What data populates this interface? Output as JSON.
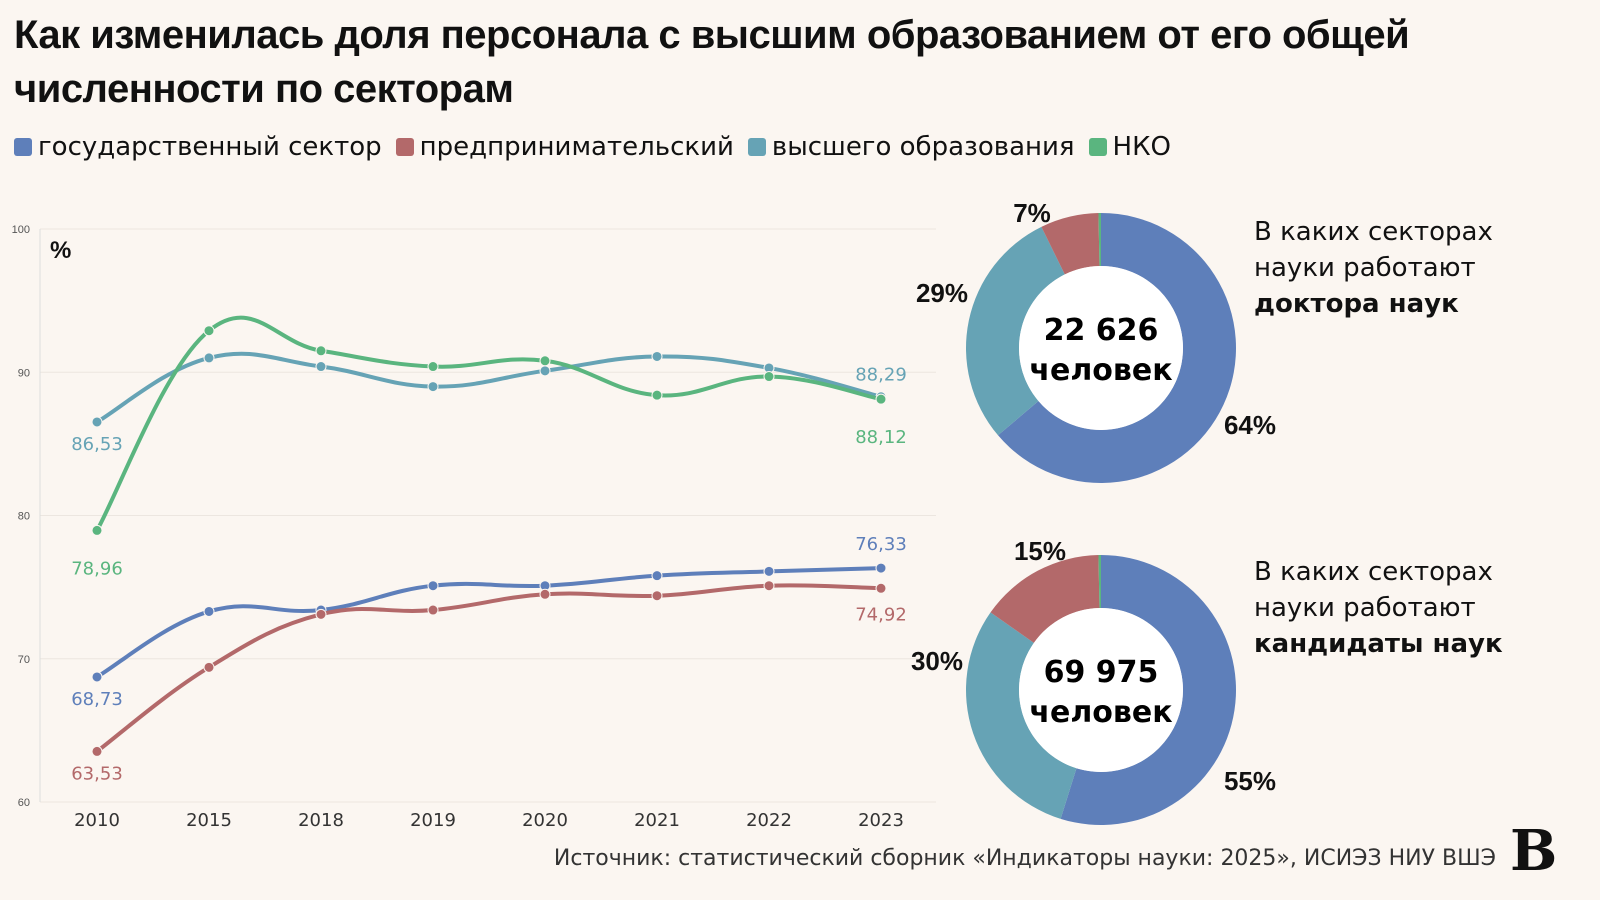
{
  "title": "Как изменилась доля персонала с высшим образованием от его общей численности по секторам",
  "legend": [
    {
      "label": "государственный сектор",
      "color": "#5e7fba"
    },
    {
      "label": "предпринимательский",
      "color": "#b3696a"
    },
    {
      "label": "высшего образования",
      "color": "#66a3b5"
    },
    {
      "label": "НКО",
      "color": "#5ab57f"
    }
  ],
  "chart_data": [
    {
      "type": "line",
      "ylabel": "%",
      "ylim": [
        60,
        100
      ],
      "yticks": [
        60,
        70,
        80,
        90,
        100
      ],
      "grid": true,
      "categories": [
        "2010",
        "2015",
        "2018",
        "2019",
        "2020",
        "2021",
        "2022",
        "2023"
      ],
      "series": [
        {
          "name": "государственный сектор",
          "color": "#5e7fba",
          "values": [
            68.73,
            73.3,
            73.4,
            75.1,
            75.1,
            75.8,
            76.1,
            76.33
          ],
          "labels": [
            "68,73",
            "",
            "",
            "",
            "",
            "",
            "",
            "76,33"
          ]
        },
        {
          "name": "предпринимательский",
          "color": "#b3696a",
          "values": [
            63.53,
            69.4,
            73.1,
            73.4,
            74.5,
            74.4,
            75.1,
            74.92
          ],
          "labels": [
            "63,53",
            "",
            "",
            "",
            "",
            "",
            "",
            "74,92"
          ]
        },
        {
          "name": "высшего образования",
          "color": "#66a3b5",
          "values": [
            86.53,
            91.0,
            90.4,
            89.0,
            90.1,
            91.1,
            90.3,
            88.29
          ],
          "labels": [
            "86,53",
            "",
            "",
            "",
            "",
            "",
            "",
            "88,29"
          ]
        },
        {
          "name": "НКО",
          "color": "#5ab57f",
          "values": [
            78.96,
            92.9,
            91.5,
            90.4,
            90.8,
            88.4,
            89.7,
            88.12
          ],
          "labels": [
            "78,96",
            "",
            "",
            "",
            "",
            "",
            "",
            "88,12"
          ]
        }
      ]
    },
    {
      "type": "pie",
      "center_value": "22 626",
      "center_unit": "человек",
      "title_line1": "В каких секторах",
      "title_line2": "науки работают",
      "title_bold": "доктора наук",
      "values": [
        64,
        29,
        7,
        0.3
      ],
      "labels": [
        "64%",
        "29%",
        "7%",
        ""
      ],
      "colors": [
        "#5e7fba",
        "#66a3b5",
        "#b3696a",
        "#5ab57f"
      ]
    },
    {
      "type": "pie",
      "center_value": "69 975",
      "center_unit": "человек",
      "title_line1": "В каких секторах",
      "title_line2": "науки работают",
      "title_bold": "кандидаты наук",
      "values": [
        55,
        30,
        15,
        0.3
      ],
      "labels": [
        "55%",
        "30%",
        "15%",
        ""
      ],
      "colors": [
        "#5e7fba",
        "#66a3b5",
        "#b3696a",
        "#5ab57f"
      ]
    }
  ],
  "source": "Источник: статистический сборник «Индикаторы науки: 2025», ИСИЭЗ НИУ ВШЭ",
  "logo": "В"
}
